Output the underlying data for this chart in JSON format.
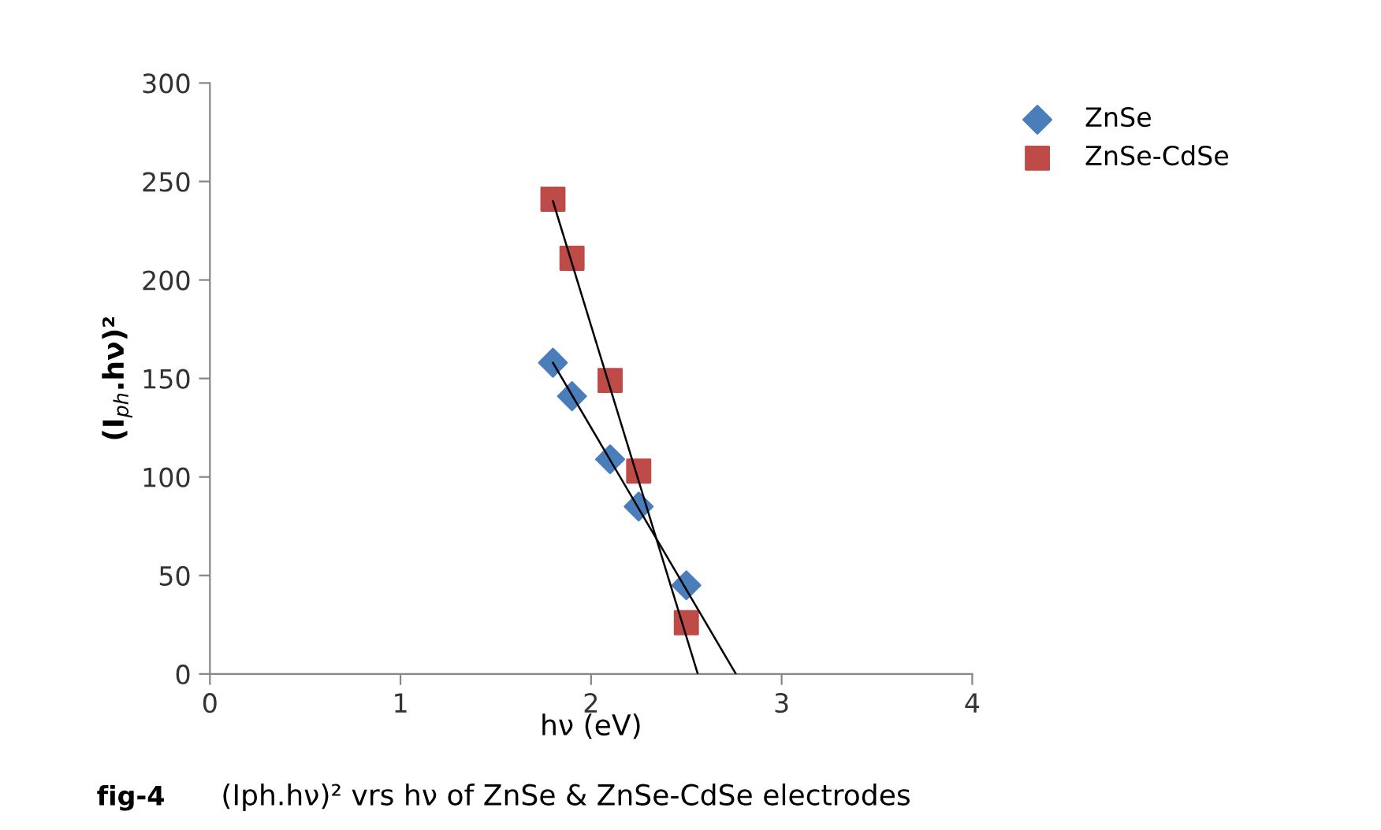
{
  "chart_data": {
    "type": "scatter",
    "xlabel": "hν (eV)",
    "ylabel": "(I$_{ph}$.hν)²",
    "annotations": [
      "fig-4",
      "(Iph.hν)² vrs hν of ZnSe & ZnSe-CdSe electrodes"
    ],
    "series": [
      {
        "name": "ZnSe",
        "color": "#4a7ebb",
        "marker": "diamond",
        "x": [
          1.8,
          1.9,
          2.1,
          2.25,
          2.5
        ],
        "values": [
          158,
          141,
          109,
          85,
          45
        ]
      },
      {
        "name": "ZnSe-CdSe",
        "color": "#be4b48",
        "marker": "square",
        "x": [
          1.8,
          1.9,
          2.1,
          2.25,
          2.5
        ],
        "values": [
          241,
          211,
          149,
          103,
          26
        ]
      },
      {
        "type": "line",
        "color": "#000000",
        "marker": "none",
        "x": [
          1.8,
          2.76
        ],
        "values": [
          158,
          0
        ]
      },
      {
        "type": "line",
        "color": "#000000",
        "marker": "none",
        "x": [
          1.8,
          2.56
        ],
        "values": [
          240,
          0
        ]
      }
    ],
    "xlim": [
      0,
      4
    ],
    "ylim": [
      0,
      300
    ],
    "xticks": [
      0,
      1,
      2,
      3,
      4
    ],
    "yticks": [
      0,
      50,
      100,
      150,
      200,
      250,
      300
    ],
    "grid": false,
    "legend": "top right"
  }
}
